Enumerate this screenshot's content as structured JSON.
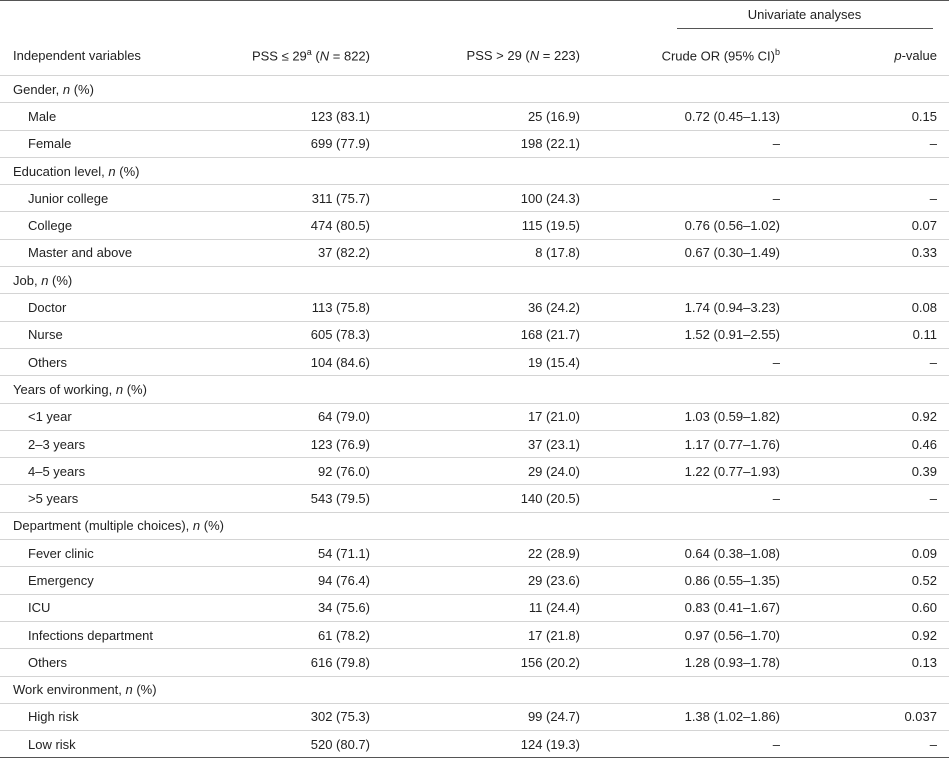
{
  "header": {
    "group_label": "Univariate analyses",
    "columns": [
      [
        "Independent variables"
      ],
      [
        "PSS ≤ 29",
        "a",
        " (",
        "N",
        " = 822)"
      ],
      [
        "PSS > 29 (",
        "N",
        " = 223)"
      ],
      [
        "Crude OR (95% CI)",
        "b"
      ],
      [
        "p",
        "-value"
      ]
    ]
  },
  "sections": [
    {
      "title": [
        "Gender, ",
        "n",
        " (%)"
      ],
      "rows": [
        [
          "Male",
          "123 (83.1)",
          "25 (16.9)",
          "0.72 (0.45–1.13)",
          "0.15"
        ],
        [
          "Female",
          "699 (77.9)",
          "198 (22.1)",
          "–",
          "–"
        ]
      ]
    },
    {
      "title": [
        "Education level, ",
        "n",
        " (%)"
      ],
      "rows": [
        [
          "Junior college",
          "311 (75.7)",
          "100 (24.3)",
          "–",
          "–"
        ],
        [
          "College",
          "474 (80.5)",
          "115 (19.5)",
          "0.76 (0.56–1.02)",
          "0.07"
        ],
        [
          "Master and above",
          "37 (82.2)",
          "8 (17.8)",
          "0.67 (0.30–1.49)",
          "0.33"
        ]
      ]
    },
    {
      "title": [
        "Job, ",
        "n",
        " (%)"
      ],
      "rows": [
        [
          "Doctor",
          "113 (75.8)",
          "36 (24.2)",
          "1.74 (0.94–3.23)",
          "0.08"
        ],
        [
          "Nurse",
          "605 (78.3)",
          "168 (21.7)",
          "1.52 (0.91–2.55)",
          "0.11"
        ],
        [
          "Others",
          "104 (84.6)",
          "19 (15.4)",
          "–",
          "–"
        ]
      ]
    },
    {
      "title": [
        "Years of working, ",
        "n",
        " (%)"
      ],
      "rows": [
        [
          "<1 year",
          "64 (79.0)",
          "17 (21.0)",
          "1.03 (0.59–1.82)",
          "0.92"
        ],
        [
          "2–3 years",
          "123 (76.9)",
          "37 (23.1)",
          "1.17 (0.77–1.76)",
          "0.46"
        ],
        [
          "4–5 years",
          "92 (76.0)",
          "29 (24.0)",
          "1.22 (0.77–1.93)",
          "0.39"
        ],
        [
          ">5 years",
          "543 (79.5)",
          "140 (20.5)",
          "–",
          "–"
        ]
      ]
    },
    {
      "title": [
        "Department (multiple choices), ",
        "n",
        " (%)"
      ],
      "rows": [
        [
          "Fever clinic",
          "54 (71.1)",
          "22 (28.9)",
          "0.64 (0.38–1.08)",
          "0.09"
        ],
        [
          "Emergency",
          "94 (76.4)",
          "29 (23.6)",
          "0.86 (0.55–1.35)",
          "0.52"
        ],
        [
          "ICU",
          "34 (75.6)",
          "11 (24.4)",
          "0.83 (0.41–1.67)",
          "0.60"
        ],
        [
          "Infections department",
          "61 (78.2)",
          "17 (21.8)",
          "0.97 (0.56–1.70)",
          "0.92"
        ],
        [
          "Others",
          "616 (79.8)",
          "156 (20.2)",
          "1.28 (0.93–1.78)",
          "0.13"
        ]
      ]
    },
    {
      "title": [
        "Work environment, ",
        "n",
        " (%)"
      ],
      "rows": [
        [
          "High risk",
          "302 (75.3)",
          "99 (24.7)",
          "1.38 (1.02–1.86)",
          "0.037"
        ],
        [
          "Low risk",
          "520 (80.7)",
          "124 (19.3)",
          "–",
          "–"
        ]
      ]
    }
  ]
}
